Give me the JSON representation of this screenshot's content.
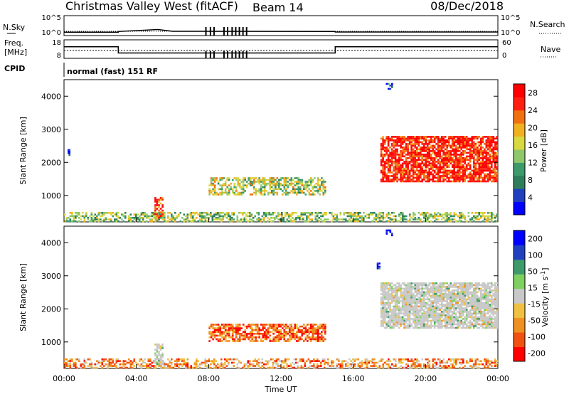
{
  "header": {
    "station": "Christmas Valley West (fitACF)",
    "beam": "Beam 14",
    "date": "08/Dec/2018"
  },
  "status_panel": {
    "left_labels": [
      "N.Sky",
      "Freq.",
      "[MHz]",
      "CPID"
    ],
    "right_labels": [
      "N.Search",
      "Nave"
    ],
    "sky_ticks": [
      "10^5",
      "10^0"
    ],
    "search_ticks": [
      "10^5",
      "10^0"
    ],
    "freq_ticks": [
      "18",
      "8"
    ],
    "nave_ticks": [
      "60",
      "0"
    ],
    "cpid_text": "normal (fast) 151 RF",
    "freq_trace": [
      {
        "t": 0.0,
        "f": 14.5
      },
      {
        "t": 3.0,
        "f": 14.5
      },
      {
        "t": 3.0,
        "f": 10.5
      },
      {
        "t": 15.0,
        "f": 10.5
      },
      {
        "t": 15.0,
        "f": 14.5
      },
      {
        "t": 24.0,
        "f": 14.5
      }
    ],
    "sky_trace": [
      {
        "t": 0.0,
        "v": 0.55
      },
      {
        "t": 3.0,
        "v": 0.55
      },
      {
        "t": 3.0,
        "v": 0.75
      },
      {
        "t": 5.2,
        "v": 1.3
      },
      {
        "t": 6.0,
        "v": 0.8
      },
      {
        "t": 15.0,
        "v": 0.75
      },
      {
        "t": 15.0,
        "v": 0.6
      },
      {
        "t": 24.0,
        "v": 0.6
      }
    ],
    "cpid_marks": [
      7.85,
      8.1,
      8.3,
      8.85,
      9.05,
      9.3,
      9.5,
      9.7,
      9.9,
      10.1
    ]
  },
  "time_axis": {
    "ticks": [
      "00:00",
      "04:00",
      "08:00",
      "12:00",
      "16:00",
      "20:00",
      "00:00"
    ],
    "label": "Time UT"
  },
  "chart_data": [
    {
      "type": "heatmap",
      "title": "Power",
      "ylabel": "Slant Range [km]",
      "xlim": [
        0,
        24
      ],
      "ylim": [
        200,
        4500
      ],
      "yticks": [
        1000,
        2000,
        3000,
        4000
      ],
      "colorbar": {
        "label": "Power [dB]",
        "ticks": [
          4,
          8,
          12,
          16,
          20,
          24,
          28
        ],
        "range": [
          0,
          30
        ],
        "colors": [
          "#0000ff",
          "#2040c0",
          "#2e7d5a",
          "#3d9a6a",
          "#8ec86a",
          "#d8d840",
          "#f0b020",
          "#f07010",
          "#ff2010",
          "#ff0000"
        ]
      },
      "regions": [
        {
          "t0": 0.0,
          "t1": 24.0,
          "r0": 200,
          "r1": 500,
          "level": 0.45,
          "density": 0.55
        },
        {
          "t0": 5.0,
          "t1": 5.5,
          "r0": 300,
          "r1": 950,
          "level": 0.85,
          "density": 0.7
        },
        {
          "t0": 8.0,
          "t1": 14.5,
          "r0": 1000,
          "r1": 1550,
          "level": 0.5,
          "density": 0.6
        },
        {
          "t0": 17.5,
          "t1": 24.0,
          "r0": 1400,
          "r1": 2800,
          "level": 0.9,
          "density": 0.8
        },
        {
          "t0": 17.8,
          "t1": 18.2,
          "r0": 4200,
          "r1": 4400,
          "level": 0.2,
          "density": 0.6
        },
        {
          "t0": 0.2,
          "t1": 0.3,
          "r0": 2200,
          "r1": 2400,
          "level": 0.25,
          "density": 0.8
        }
      ]
    },
    {
      "type": "heatmap",
      "title": "Velocity",
      "ylabel": "Slant Range [km]",
      "xlim": [
        0,
        24
      ],
      "ylim": [
        200,
        4500
      ],
      "yticks": [
        1000,
        2000,
        3000,
        4000
      ],
      "colorbar": {
        "label": "Velocity [m s^-1]",
        "ticks": [
          200,
          100,
          50,
          15,
          -15,
          -50,
          -100,
          -200
        ],
        "range": [
          -250,
          250
        ],
        "colors": [
          "#ff0000",
          "#f05010",
          "#f09020",
          "#f0c040",
          "#c8c8c8",
          "#7ed060",
          "#3d9a6a",
          "#2040c0",
          "#0000ff"
        ]
      },
      "regions": [
        {
          "t0": 0.0,
          "t1": 24.0,
          "r0": 200,
          "r1": 500,
          "level": 0.3,
          "density": 0.5
        },
        {
          "t0": 5.0,
          "t1": 5.5,
          "r0": 300,
          "r1": 950,
          "level": 0.5,
          "density": 0.7
        },
        {
          "t0": 8.0,
          "t1": 14.5,
          "r0": 1000,
          "r1": 1550,
          "level": 0.2,
          "density": 0.7
        },
        {
          "t0": 17.5,
          "t1": 24.0,
          "r0": 1400,
          "r1": 2800,
          "level": 0.5,
          "density": 0.85
        },
        {
          "t0": 17.8,
          "t1": 18.2,
          "r0": 4200,
          "r1": 4400,
          "level": 0.95,
          "density": 0.7
        },
        {
          "t0": 17.3,
          "t1": 17.5,
          "r0": 3200,
          "r1": 3400,
          "level": 0.95,
          "density": 0.7
        }
      ]
    }
  ]
}
